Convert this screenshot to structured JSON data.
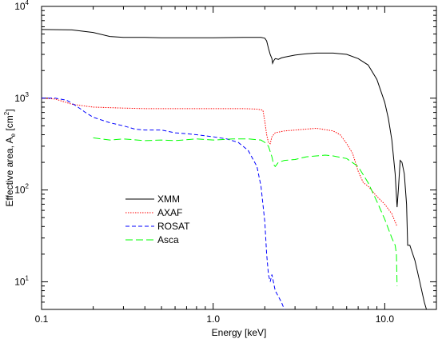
{
  "chart_data": {
    "type": "line",
    "title": "",
    "xlabel": "Energy [keV]",
    "ylabel_main": "Effective area, A",
    "ylabel_sub": "e",
    "ylabel_unit_open": " [cm",
    "ylabel_unit_sup": "2",
    "ylabel_unit_close": "]",
    "xscale": "log",
    "yscale": "log",
    "xlim": [
      0.1,
      20
    ],
    "ylim": [
      5,
      10000
    ],
    "grid": false,
    "legend_position": "center-left",
    "x_ticks": [
      {
        "value": 0.1,
        "label": "0.1"
      },
      {
        "value": 1.0,
        "label": "1.0"
      },
      {
        "value": 10.0,
        "label": "10.0"
      }
    ],
    "y_ticks": [
      {
        "value": 10,
        "base": "10",
        "exp": "1"
      },
      {
        "value": 100,
        "base": "10",
        "exp": "2"
      },
      {
        "value": 1000,
        "base": "10",
        "exp": "3"
      },
      {
        "value": 10000,
        "base": "10",
        "exp": "4"
      }
    ],
    "series": [
      {
        "name": "XMM",
        "color": "#000000",
        "dash": "solid",
        "points": [
          [
            0.1,
            5600
          ],
          [
            0.15,
            5550
          ],
          [
            0.2,
            5200
          ],
          [
            0.25,
            4700
          ],
          [
            0.3,
            4600
          ],
          [
            0.4,
            4600
          ],
          [
            0.5,
            4550
          ],
          [
            0.7,
            4550
          ],
          [
            1.0,
            4550
          ],
          [
            1.5,
            4600
          ],
          [
            1.9,
            4600
          ],
          [
            2.0,
            4500
          ],
          [
            2.05,
            4200
          ],
          [
            2.1,
            3500
          ],
          [
            2.15,
            3000
          ],
          [
            2.2,
            2700
          ],
          [
            2.22,
            2400
          ],
          [
            2.25,
            2550
          ],
          [
            2.3,
            2700
          ],
          [
            2.4,
            2650
          ],
          [
            2.5,
            2750
          ],
          [
            2.6,
            2800
          ],
          [
            3.0,
            2950
          ],
          [
            3.5,
            3050
          ],
          [
            4.0,
            3100
          ],
          [
            5.0,
            3100
          ],
          [
            6.0,
            3000
          ],
          [
            7.0,
            2700
          ],
          [
            8.0,
            2300
          ],
          [
            9.0,
            1600
          ],
          [
            10.0,
            900
          ],
          [
            10.5,
            600
          ],
          [
            11.0,
            350
          ],
          [
            11.5,
            150
          ],
          [
            11.8,
            65
          ],
          [
            12.0,
            100
          ],
          [
            12.3,
            210
          ],
          [
            12.6,
            200
          ],
          [
            13.0,
            150
          ],
          [
            13.4,
            70
          ],
          [
            13.6,
            25
          ],
          [
            14.0,
            25
          ],
          [
            15.0,
            17
          ],
          [
            16.0,
            10
          ],
          [
            17.0,
            6
          ],
          [
            17.5,
            5
          ]
        ]
      },
      {
        "name": "AXAF",
        "color": "#ff0000",
        "dash": "dotted",
        "points": [
          [
            0.1,
            1000
          ],
          [
            0.12,
            980
          ],
          [
            0.15,
            860
          ],
          [
            0.18,
            820
          ],
          [
            0.2,
            800
          ],
          [
            0.3,
            780
          ],
          [
            0.4,
            770
          ],
          [
            0.5,
            770
          ],
          [
            0.7,
            770
          ],
          [
            1.0,
            770
          ],
          [
            1.5,
            770
          ],
          [
            1.8,
            760
          ],
          [
            1.95,
            740
          ],
          [
            2.0,
            560
          ],
          [
            2.05,
            400
          ],
          [
            2.1,
            330
          ],
          [
            2.15,
            320
          ],
          [
            2.2,
            380
          ],
          [
            2.3,
            420
          ],
          [
            2.6,
            440
          ],
          [
            3.0,
            450
          ],
          [
            4.0,
            470
          ],
          [
            5.0,
            440
          ],
          [
            5.5,
            400
          ],
          [
            6.0,
            320
          ],
          [
            6.5,
            250
          ],
          [
            7.0,
            160
          ],
          [
            7.5,
            120
          ],
          [
            8.0,
            110
          ],
          [
            9.0,
            85
          ],
          [
            10.0,
            70
          ],
          [
            11.0,
            55
          ],
          [
            11.5,
            45
          ],
          [
            11.8,
            40
          ]
        ]
      },
      {
        "name": "ROSAT",
        "color": "#0000ff",
        "dash": "dashed",
        "points": [
          [
            0.1,
            1000
          ],
          [
            0.12,
            1000
          ],
          [
            0.14,
            950
          ],
          [
            0.16,
            820
          ],
          [
            0.18,
            700
          ],
          [
            0.2,
            620
          ],
          [
            0.25,
            540
          ],
          [
            0.3,
            500
          ],
          [
            0.35,
            460
          ],
          [
            0.4,
            450
          ],
          [
            0.5,
            450
          ],
          [
            0.6,
            420
          ],
          [
            0.7,
            410
          ],
          [
            0.8,
            400
          ],
          [
            1.0,
            380
          ],
          [
            1.2,
            360
          ],
          [
            1.4,
            330
          ],
          [
            1.6,
            270
          ],
          [
            1.8,
            180
          ],
          [
            1.9,
            110
          ],
          [
            2.0,
            45
          ],
          [
            2.05,
            20
          ],
          [
            2.1,
            12
          ],
          [
            2.15,
            10
          ],
          [
            2.2,
            12
          ],
          [
            2.3,
            8
          ],
          [
            2.5,
            6
          ],
          [
            2.6,
            5
          ]
        ]
      },
      {
        "name": "Asca",
        "color": "#00ff00",
        "dash": "longdash",
        "points": [
          [
            0.2,
            370
          ],
          [
            0.25,
            350
          ],
          [
            0.3,
            360
          ],
          [
            0.4,
            345
          ],
          [
            0.5,
            350
          ],
          [
            0.6,
            345
          ],
          [
            0.8,
            360
          ],
          [
            1.0,
            350
          ],
          [
            1.3,
            360
          ],
          [
            1.6,
            360
          ],
          [
            1.9,
            350
          ],
          [
            2.0,
            330
          ],
          [
            2.1,
            300
          ],
          [
            2.2,
            230
          ],
          [
            2.25,
            190
          ],
          [
            2.3,
            180
          ],
          [
            2.4,
            200
          ],
          [
            2.6,
            210
          ],
          [
            3.0,
            215
          ],
          [
            3.5,
            230
          ],
          [
            4.0,
            235
          ],
          [
            4.5,
            240
          ],
          [
            5.0,
            235
          ],
          [
            6.0,
            220
          ],
          [
            7.0,
            180
          ],
          [
            8.0,
            120
          ],
          [
            9.0,
            75
          ],
          [
            10.0,
            48
          ],
          [
            11.0,
            30
          ],
          [
            11.5,
            25
          ],
          [
            11.7,
            20
          ],
          [
            11.8,
            9
          ]
        ]
      }
    ]
  }
}
